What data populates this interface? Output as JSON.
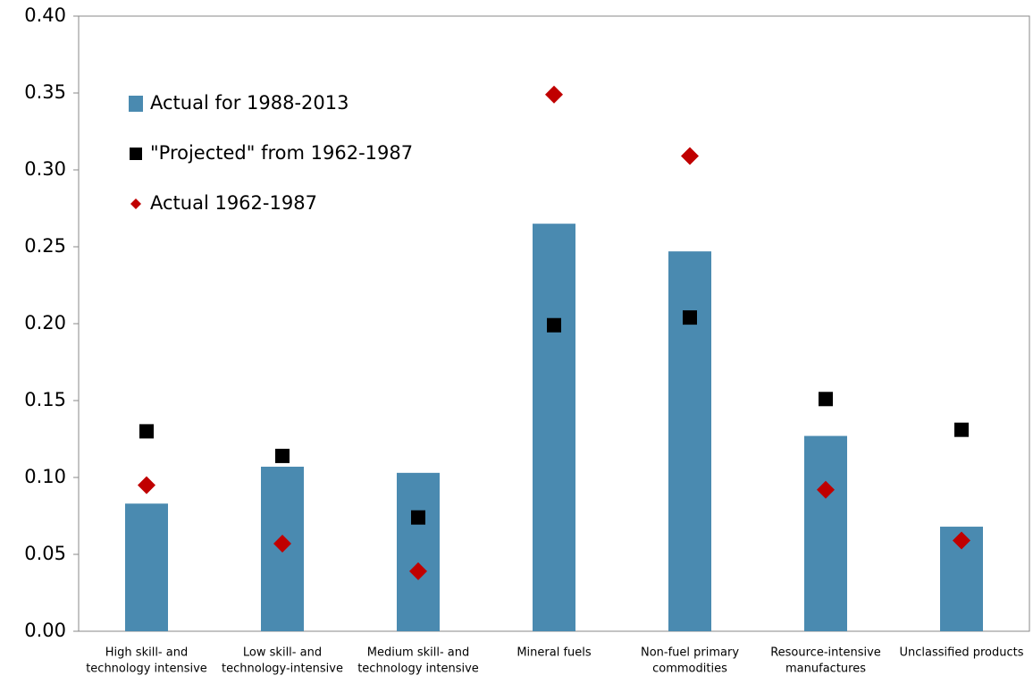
{
  "chart_data": {
    "type": "bar",
    "categories": [
      [
        "High skill- and",
        "technology intensive"
      ],
      [
        "Low skill- and",
        "technology-intensive"
      ],
      [
        "Medium skill- and",
        "technology intensive"
      ],
      [
        "Mineral fuels"
      ],
      [
        "Non-fuel primary",
        "commodities"
      ],
      [
        "Resource-intensive",
        "manufactures"
      ],
      [
        "Unclassified products"
      ]
    ],
    "series": [
      {
        "name": "Actual for 1988-2013",
        "color": "#4a8ab0",
        "marker": "bar",
        "values": [
          0.083,
          0.107,
          0.103,
          0.265,
          0.247,
          0.127,
          0.068
        ]
      },
      {
        "name": "\"Projected\" from 1962-1987",
        "color": "#000000",
        "marker": "square",
        "values": [
          0.13,
          0.114,
          0.074,
          0.199,
          0.204,
          0.151,
          0.131
        ]
      },
      {
        "name": "Actual 1962-1987",
        "color": "#c00000",
        "marker": "diamond",
        "values": [
          0.095,
          0.057,
          0.039,
          0.349,
          0.309,
          0.092,
          0.059
        ]
      }
    ],
    "ylim": [
      0,
      0.4
    ],
    "yticks": [
      {
        "value": 0,
        "label": "0.00"
      },
      0.05,
      {
        "value": 0.1,
        "label": "0.10"
      },
      0.15,
      {
        "value": 0.2,
        "label": "0.20"
      },
      0.25,
      {
        "value": 0.3,
        "label": "0.30"
      },
      0.35,
      {
        "value": 0.4,
        "label": "0.40"
      }
    ],
    "legend": "upper-left",
    "grid": false
  }
}
